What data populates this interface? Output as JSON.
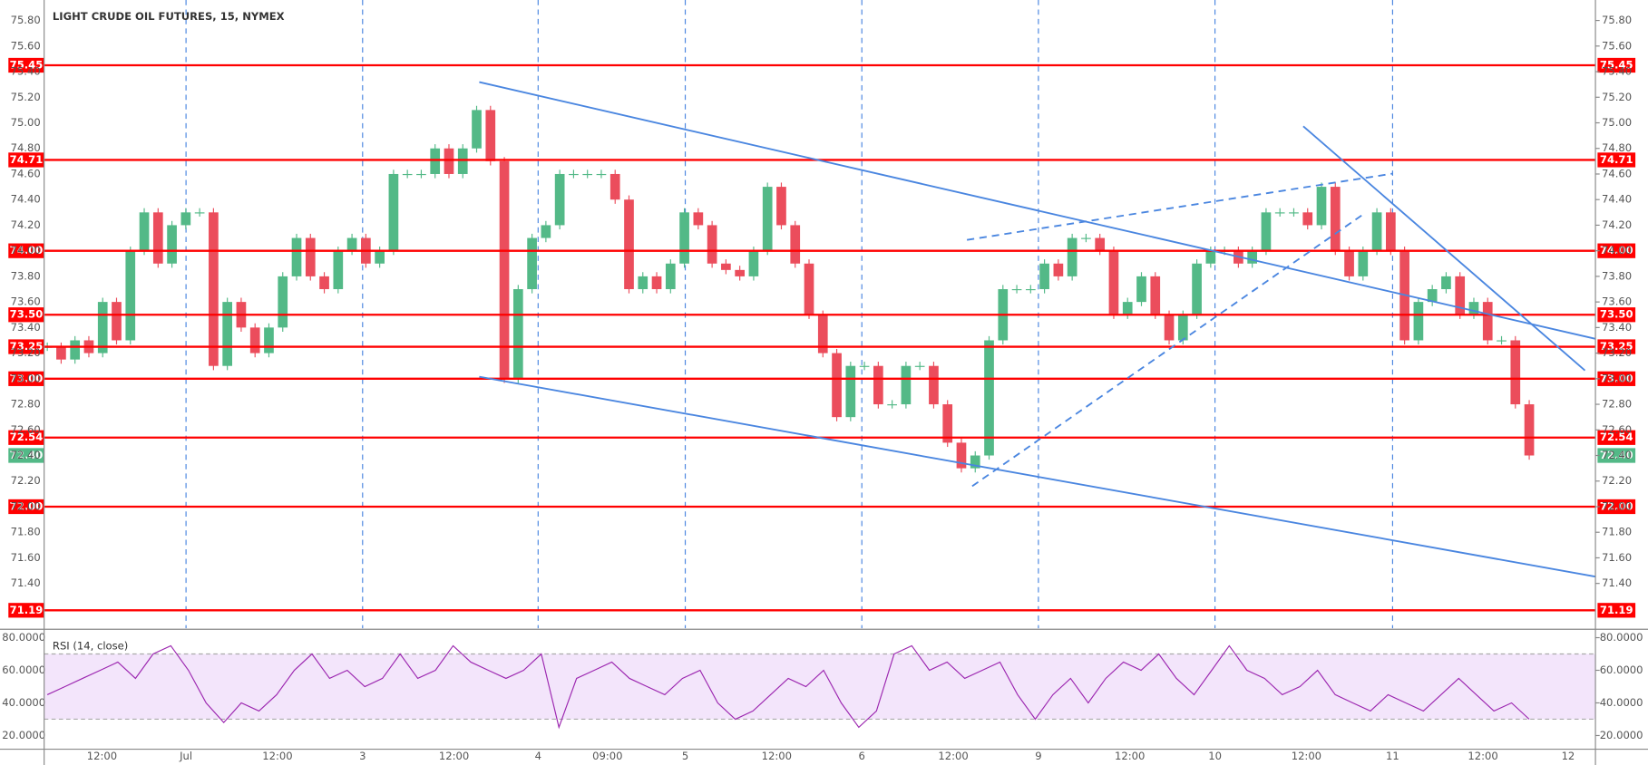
{
  "chart_data": {
    "type": "candlestick",
    "title": "LIGHT CRUDE OIL FUTURES, 15, NYMEX",
    "ylim": [
      71.05,
      75.96
    ],
    "yticks": [
      {
        "value": 71.4,
        "label": "71.40"
      },
      {
        "value": 71.6,
        "label": "71.60"
      },
      {
        "value": 71.8,
        "label": "71.80"
      },
      {
        "value": 72.0,
        "label": "72.00"
      },
      {
        "value": 72.2,
        "label": "72.20"
      },
      {
        "value": 72.4,
        "label": "72.40"
      },
      {
        "value": 72.6,
        "label": "72.60"
      },
      {
        "value": 72.8,
        "label": "72.80"
      },
      {
        "value": 73.0,
        "label": "73.00"
      },
      {
        "value": 73.2,
        "label": "73.20"
      },
      {
        "value": 73.4,
        "label": "73.40"
      },
      {
        "value": 73.6,
        "label": "73.60"
      },
      {
        "value": 73.8,
        "label": "73.80"
      },
      {
        "value": 74.0,
        "label": "74.00"
      },
      {
        "value": 74.2,
        "label": "74.20"
      },
      {
        "value": 74.4,
        "label": "74.40"
      },
      {
        "value": 74.6,
        "label": "74.60"
      },
      {
        "value": 74.8,
        "label": "74.80"
      },
      {
        "value": 75.0,
        "label": "75.00"
      },
      {
        "value": 75.2,
        "label": "75.20"
      },
      {
        "value": 75.4,
        "label": "75.40"
      },
      {
        "value": 75.6,
        "label": "75.60"
      },
      {
        "value": 75.8,
        "label": "75.80"
      }
    ],
    "levels": [
      {
        "value": 75.45,
        "label": "75.45"
      },
      {
        "value": 74.71,
        "label": "74.71"
      },
      {
        "value": 74.0,
        "label": "74.00"
      },
      {
        "value": 73.5,
        "label": "73.50"
      },
      {
        "value": 73.25,
        "label": "73.25"
      },
      {
        "value": 73.0,
        "label": "73.00"
      },
      {
        "value": 72.54,
        "label": "72.54"
      },
      {
        "value": 72.0,
        "label": "72.00"
      },
      {
        "value": 71.19,
        "label": "71.19"
      }
    ],
    "last_price": {
      "value": 72.4,
      "label": "72.40"
    },
    "level_color": "#ff0000",
    "up_color": "#53b987",
    "down_color": "#eb4d5c",
    "grid": true,
    "x_labels": [
      "12:00",
      "Jul",
      "12:00",
      "3",
      "12:00",
      "4",
      "09:00",
      "5",
      "12:00",
      "6",
      "12:00",
      "9",
      "12:00",
      "10",
      "12:00",
      "11",
      "12:00",
      "12"
    ],
    "values": [
      73.25,
      73.15,
      73.3,
      73.2,
      73.6,
      73.3,
      74.0,
      74.3,
      73.9,
      74.2,
      74.3,
      74.3,
      73.1,
      73.6,
      73.4,
      73.2,
      73.4,
      73.8,
      74.1,
      73.8,
      73.7,
      74.0,
      74.1,
      73.9,
      74.0,
      74.6,
      74.6,
      74.6,
      74.8,
      74.6,
      74.8,
      75.1,
      74.7,
      73.0,
      73.7,
      74.1,
      74.2,
      74.6,
      74.6,
      74.6,
      74.6,
      74.4,
      73.7,
      73.8,
      73.7,
      73.9,
      74.3,
      74.2,
      73.9,
      73.85,
      73.8,
      74.0,
      74.5,
      74.2,
      73.9,
      73.5,
      73.2,
      72.7,
      73.1,
      73.1,
      72.8,
      72.8,
      73.1,
      73.1,
      72.8,
      72.5,
      72.3,
      72.4,
      73.3,
      73.7,
      73.7,
      73.7,
      73.9,
      73.8,
      74.1,
      74.1,
      74.0,
      73.5,
      73.6,
      73.8,
      73.5,
      73.3,
      73.5,
      73.9,
      74.0,
      74.0,
      73.9,
      74.0,
      74.3,
      74.3,
      74.3,
      74.2,
      74.5,
      74.0,
      73.8,
      74.0,
      74.3,
      74.0,
      73.3,
      73.6,
      73.7,
      73.8,
      73.5,
      73.6,
      73.3,
      73.3,
      72.8,
      72.4
    ],
    "rsi": {
      "label": "RSI (14, close)",
      "color": "#9c27b0",
      "band": [
        30,
        70
      ],
      "ylim": [
        11.6,
        83.87
      ],
      "yticks": [
        {
          "value": 20,
          "label": "20.0000"
        },
        {
          "value": 40,
          "label": "40.0000"
        },
        {
          "value": 60,
          "label": "60.0000"
        },
        {
          "value": 80,
          "label": "80.0000"
        }
      ],
      "values": [
        45,
        50,
        55,
        60,
        65,
        55,
        70,
        75,
        60,
        40,
        28,
        40,
        35,
        45,
        60,
        70,
        55,
        60,
        50,
        55,
        70,
        55,
        60,
        75,
        65,
        60,
        55,
        60,
        70,
        25,
        55,
        60,
        65,
        55,
        50,
        45,
        55,
        60,
        40,
        30,
        35,
        45,
        55,
        50,
        60,
        40,
        25,
        35,
        70,
        75,
        60,
        65,
        55,
        60,
        65,
        45,
        30,
        45,
        55,
        40,
        55,
        65,
        60,
        70,
        55,
        45,
        60,
        75,
        60,
        55,
        45,
        50,
        60,
        45,
        40,
        35,
        45,
        40,
        35,
        45,
        55,
        45,
        35,
        40,
        30
      ]
    }
  }
}
